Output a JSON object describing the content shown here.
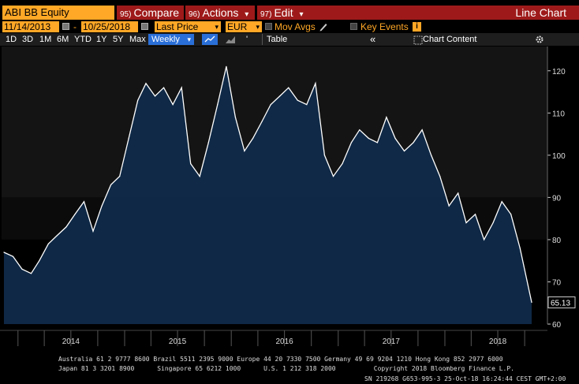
{
  "toolbar": {
    "ticker": "ABI BB Equity",
    "compare": {
      "num": "95)",
      "label": "Compare"
    },
    "actions": {
      "num": "96)",
      "label": "Actions",
      "arrow": "▾"
    },
    "edit": {
      "num": "97)",
      "label": "Edit",
      "arrow": "▾"
    },
    "title": "Line Chart"
  },
  "controls": {
    "start_date": "11/14/2013",
    "dash": "-",
    "end_date": "10/25/2018",
    "field": "Last Price",
    "currency": "EUR",
    "mov_avgs": "Mov Avgs",
    "key_events": "Key Events",
    "info": "i"
  },
  "ranges": [
    "1D",
    "3D",
    "1M",
    "6M",
    "YTD",
    "1Y",
    "5Y",
    "Max"
  ],
  "period": "Weekly",
  "table_label": "Table",
  "chart_content_label": "Chart Content",
  "collapse_label": "«",
  "colors": {
    "accent": "#ffa726",
    "red": "#9e1a1a",
    "blue": "#2a6fd8",
    "area": "#0f2a4a"
  },
  "chart_data": {
    "type": "area",
    "ylim": [
      60,
      125
    ],
    "yticks": [
      60,
      70,
      80,
      90,
      100,
      110,
      120
    ],
    "xlabels": [
      "2014",
      "2015",
      "2016",
      "2017",
      "2018"
    ],
    "last_value": "65.13",
    "x": [
      "2013-11",
      "2013-12",
      "2014-01",
      "2014-02",
      "2014-03",
      "2014-04",
      "2014-05",
      "2014-06",
      "2014-07",
      "2014-08",
      "2014-09",
      "2014-10",
      "2014-11",
      "2014-12",
      "2015-01",
      "2015-02",
      "2015-03",
      "2015-04",
      "2015-05",
      "2015-06",
      "2015-07",
      "2015-08",
      "2015-09",
      "2015-10",
      "2015-11",
      "2015-12",
      "2016-01",
      "2016-02",
      "2016-03",
      "2016-04",
      "2016-05",
      "2016-06",
      "2016-07",
      "2016-08",
      "2016-09",
      "2016-10",
      "2016-11",
      "2016-12",
      "2017-01",
      "2017-02",
      "2017-03",
      "2017-04",
      "2017-05",
      "2017-06",
      "2017-07",
      "2017-08",
      "2017-09",
      "2017-10",
      "2017-11",
      "2017-12",
      "2018-01",
      "2018-02",
      "2018-03",
      "2018-04",
      "2018-05",
      "2018-06",
      "2018-07",
      "2018-08",
      "2018-09",
      "2018-10"
    ],
    "values": [
      77,
      76,
      73,
      72,
      75,
      79,
      81,
      83,
      86,
      89,
      82,
      88,
      93,
      95,
      104,
      113,
      117,
      114,
      116,
      112,
      116,
      98,
      95,
      103,
      112,
      121,
      109,
      101,
      104,
      108,
      112,
      114,
      116,
      113,
      112,
      117,
      100,
      95,
      98,
      103,
      106,
      104,
      103,
      109,
      104,
      101,
      103,
      106,
      100,
      95,
      88,
      91,
      84,
      86,
      80,
      84,
      89,
      86,
      78,
      65.13
    ]
  },
  "footer": {
    "line1": "Australia 61 2 9777 8600 Brazil 5511 2395 9000 Europe 44 20 7330 7500 Germany 49 69 9204 1210 Hong Kong 852 2977 6000",
    "line2": "Japan 81 3 3201 8900      Singapore 65 6212 1000      U.S. 1 212 318 2000          Copyright 2018 Bloomberg Finance L.P.",
    "line3": "SN 219268 G653-995-3 25-Oct-18 16:24:44 CEST GMT+2:00"
  }
}
